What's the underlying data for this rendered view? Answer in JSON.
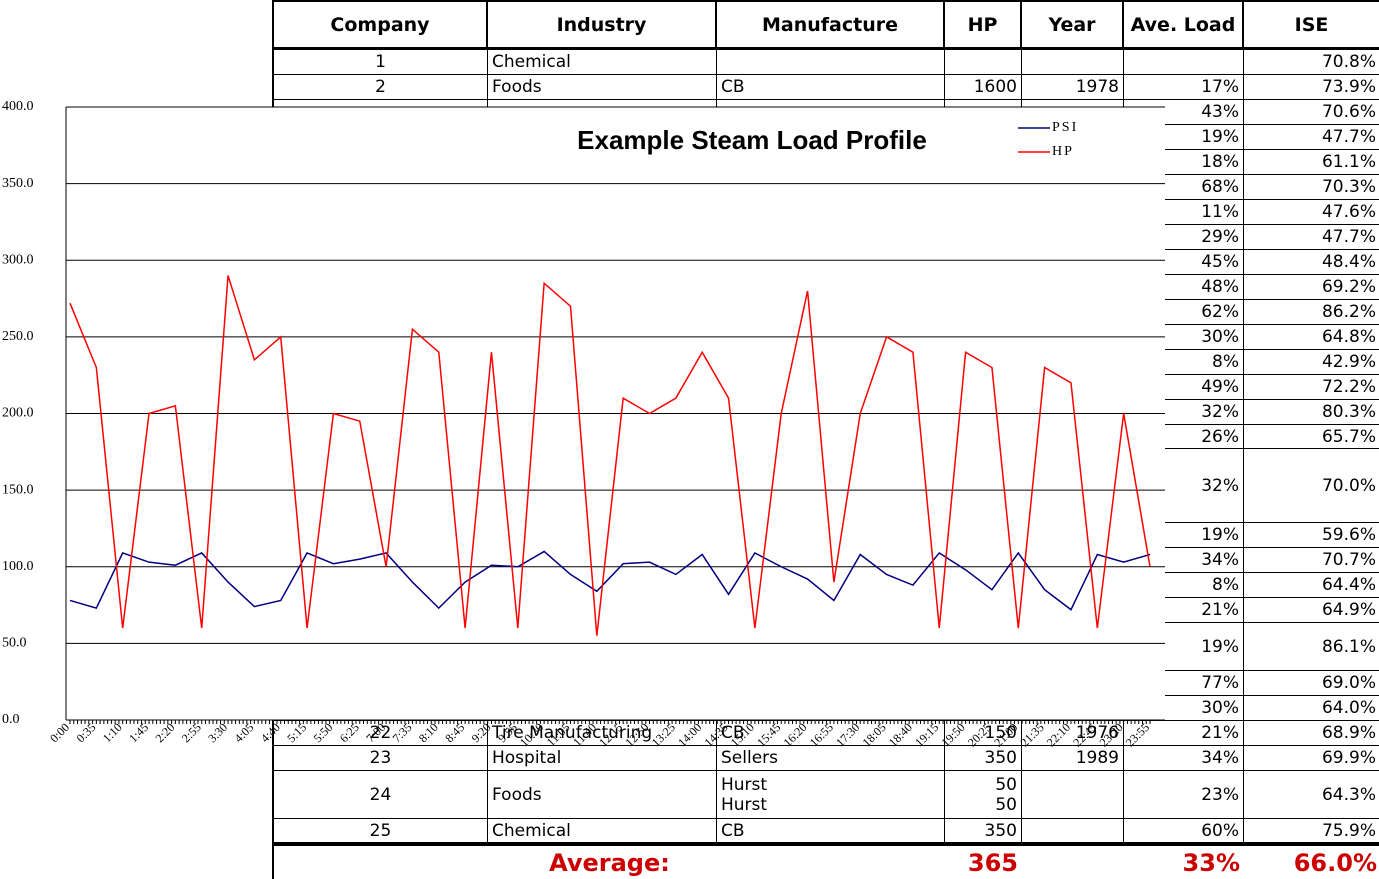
{
  "table": {
    "columns": [
      "Company",
      "Industry",
      "Manufacture",
      "HP",
      "Year",
      "Ave. Load",
      "ISE"
    ],
    "rows": [
      {
        "company": "1",
        "industry": "Chemical",
        "ise": "70.8%"
      },
      {
        "company": "2",
        "industry": "Foods",
        "manufacture": "CB",
        "hp": "1600",
        "year": "1978",
        "ave_load": "17%",
        "ise": "73.9%"
      },
      {
        "ave_load": "43%",
        "ise": "70.6%"
      },
      {
        "ave_load": "19%",
        "ise": "47.7%"
      },
      {
        "ave_load": "18%",
        "ise": "61.1%"
      },
      {
        "ave_load": "68%",
        "ise": "70.3%"
      },
      {
        "ave_load": "11%",
        "ise": "47.6%"
      },
      {
        "ave_load": "29%",
        "ise": "47.7%"
      },
      {
        "ave_load": "45%",
        "ise": "48.4%"
      },
      {
        "ave_load": "48%",
        "ise": "69.2%"
      },
      {
        "ave_load": "62%",
        "ise": "86.2%"
      },
      {
        "ave_load": "30%",
        "ise": "64.8%"
      },
      {
        "ave_load": "8%",
        "ise": "42.9%"
      },
      {
        "ave_load": "49%",
        "ise": "72.2%"
      },
      {
        "ave_load": "32%",
        "ise": "80.3%"
      },
      {
        "ave_load": "26%",
        "ise": "65.7%"
      },
      {
        "ave_load": "32%",
        "ise": "70.0%"
      },
      {
        "ave_load": "19%",
        "ise": "59.6%"
      },
      {
        "ave_load": "34%",
        "ise": "70.7%"
      },
      {
        "ave_load": "8%",
        "ise": "64.4%"
      },
      {
        "ave_load": "21%",
        "ise": "64.9%"
      },
      {
        "ave_load": "19%",
        "ise": "86.1%"
      },
      {
        "ave_load": "77%",
        "ise": "69.0%"
      },
      {
        "ave_load": "30%",
        "ise": "64.0%"
      },
      {
        "company": "22",
        "industry": "Tire Manufacturing",
        "manufacture": "CB",
        "hp": "150",
        "year": "1976",
        "ave_load": "21%",
        "ise": "68.9%"
      },
      {
        "company": "23",
        "industry": "Hospital",
        "manufacture": "Sellers",
        "hp": "350",
        "year": "1989",
        "ave_load": "34%",
        "ise": "69.9%"
      },
      {
        "company": "24",
        "industry": "Foods",
        "manufacture": [
          "Hurst",
          "Hurst"
        ],
        "hp": [
          "50",
          "50"
        ],
        "ave_load": "23%",
        "ise": "64.3%"
      },
      {
        "company": "25",
        "industry": "Chemical",
        "manufacture": "CB",
        "hp": "350",
        "ave_load": "60%",
        "ise": "75.9%"
      }
    ],
    "average": {
      "label": "Average:",
      "hp": "365",
      "ave_load": "33%",
      "ise": "66.0%"
    }
  },
  "chart_data": {
    "type": "line",
    "title": "Example Steam Load Profile",
    "categories": [
      "0:00",
      "0:35",
      "1:10",
      "1:45",
      "2:20",
      "2:55",
      "3:30",
      "4:05",
      "4:40",
      "5:15",
      "5:50",
      "6:25",
      "7:00",
      "7:35",
      "8:10",
      "8:45",
      "9:20",
      "9:55",
      "10:30",
      "11:05",
      "11:40",
      "12:15",
      "12:50",
      "13:25",
      "14:00",
      "14:35",
      "15:10",
      "15:45",
      "16:20",
      "16:55",
      "17:30",
      "18:05",
      "18:40",
      "19:15",
      "19:50",
      "20:25",
      "21:00",
      "21:35",
      "22:10",
      "22:45",
      "23:20",
      "23:55"
    ],
    "series": [
      {
        "name": "PSI",
        "color": "#000080",
        "values": [
          78,
          73,
          109,
          103,
          101,
          109,
          90,
          74,
          78,
          109,
          102,
          105,
          109,
          90,
          73,
          90,
          101,
          100,
          110,
          95,
          84,
          102,
          103,
          95,
          108,
          82,
          109,
          100,
          92,
          78,
          108,
          95,
          88,
          109,
          98,
          85,
          109,
          85,
          72,
          108,
          103,
          108
        ]
      },
      {
        "name": "HP",
        "color": "#ff0000",
        "values": [
          272,
          230,
          60,
          200,
          205,
          60,
          290,
          235,
          250,
          60,
          200,
          195,
          100,
          255,
          240,
          60,
          240,
          60,
          285,
          270,
          55,
          210,
          200,
          210,
          240,
          210,
          60,
          200,
          280,
          90,
          200,
          250,
          240,
          60,
          240,
          230,
          60,
          230,
          220,
          60,
          200,
          100
        ]
      }
    ],
    "ylim": [
      0,
      400
    ],
    "yticks": [
      {
        "value": 0,
        "label": "0.0"
      },
      {
        "value": 50,
        "label": "50.0"
      },
      {
        "value": 100,
        "label": "100.0"
      },
      {
        "value": 150,
        "label": "150.0"
      },
      {
        "value": 200,
        "label": "200.0"
      },
      {
        "value": 250,
        "label": "250.0"
      },
      {
        "value": 300,
        "label": "300.0"
      },
      {
        "value": 350,
        "label": "350.0"
      },
      {
        "value": 400,
        "label": "400.0"
      }
    ],
    "grid": true,
    "legend": "top-right"
  }
}
